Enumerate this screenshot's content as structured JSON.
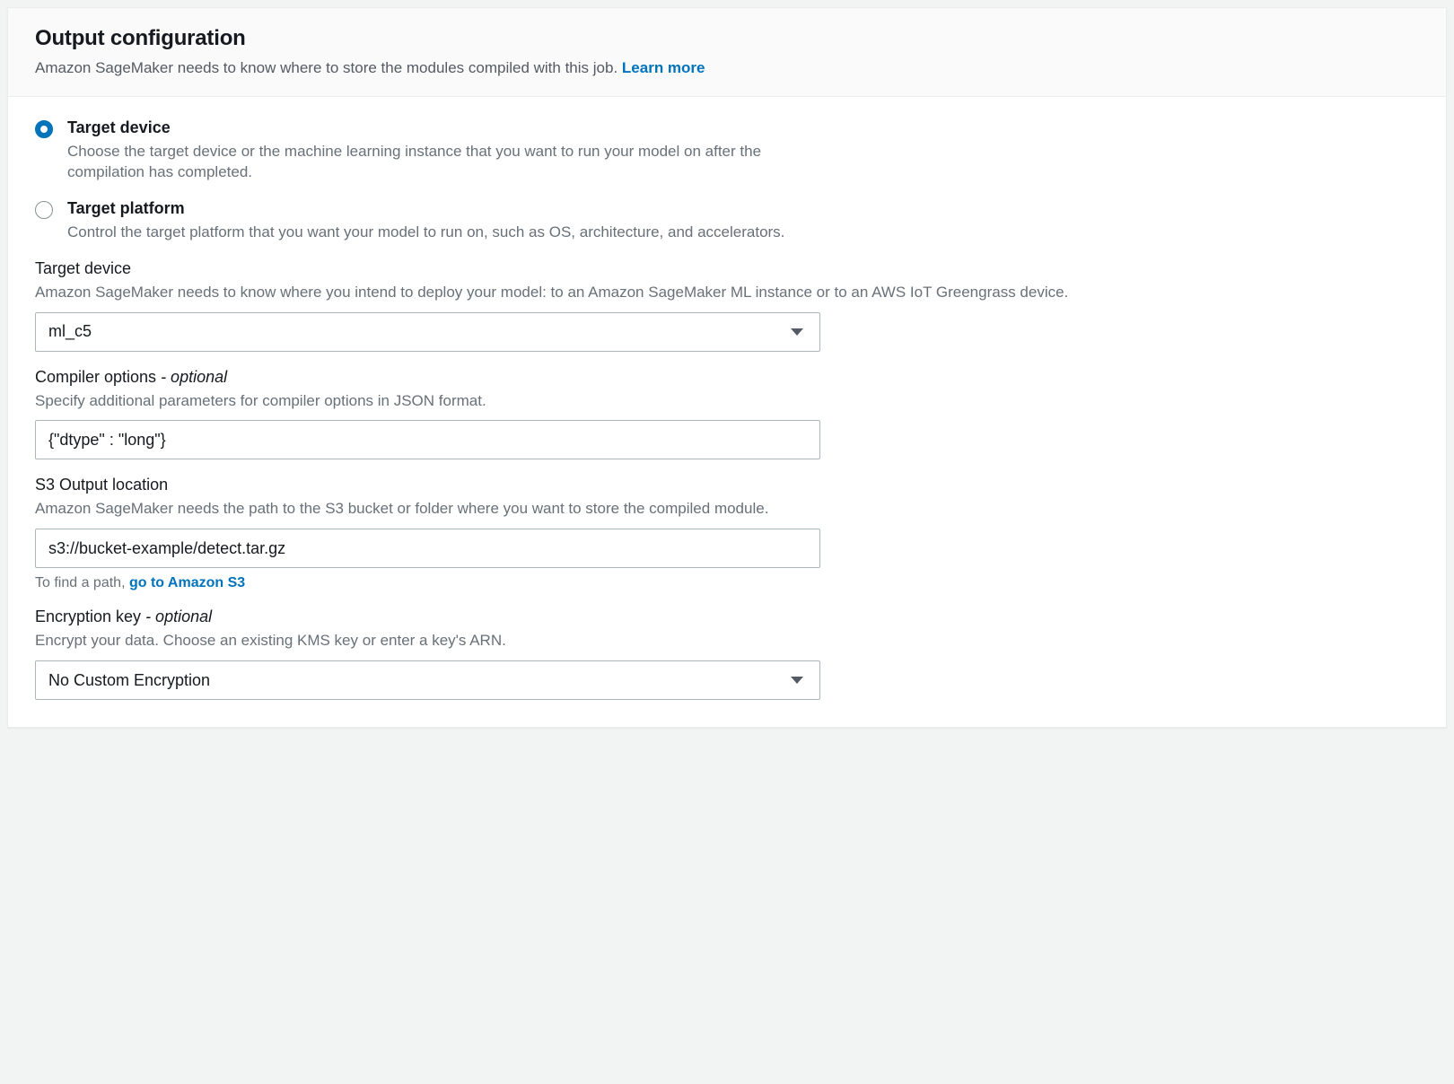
{
  "header": {
    "title": "Output configuration",
    "subtitle": "Amazon SageMaker needs to know where to store the modules compiled with this job. ",
    "learn_more": "Learn more"
  },
  "radios": {
    "target_device": {
      "label": "Target device",
      "desc": "Choose the target device or the machine learning instance that you want to run your model on after the compilation has completed.",
      "selected": true
    },
    "target_platform": {
      "label": "Target platform",
      "desc": "Control the target platform that you want your model to run on, such as OS, architecture, and accelerators.",
      "selected": false
    }
  },
  "fields": {
    "target_device": {
      "label": "Target device",
      "desc": "Amazon SageMaker needs to know where you intend to deploy your model: to an Amazon SageMaker ML instance or to an AWS IoT Greengrass device.",
      "value": "ml_c5"
    },
    "compiler_options": {
      "label_main": "Compiler options ",
      "label_suffix": "- optional",
      "desc": "Specify additional parameters for compiler options in JSON format.",
      "value": "{\"dtype\" : \"long\"}"
    },
    "s3_output": {
      "label": "S3 Output location",
      "desc": "Amazon SageMaker needs the path to the S3 bucket or folder where you want to store the compiled module.",
      "value": "s3://bucket-example/detect.tar.gz",
      "helper_prefix": "To find a path, ",
      "helper_link": "go to Amazon S3"
    },
    "encryption": {
      "label_main": "Encryption key ",
      "label_suffix": "- optional",
      "desc": "Encrypt your data. Choose an existing KMS key or enter a key's ARN.",
      "value": "No Custom Encryption"
    }
  }
}
